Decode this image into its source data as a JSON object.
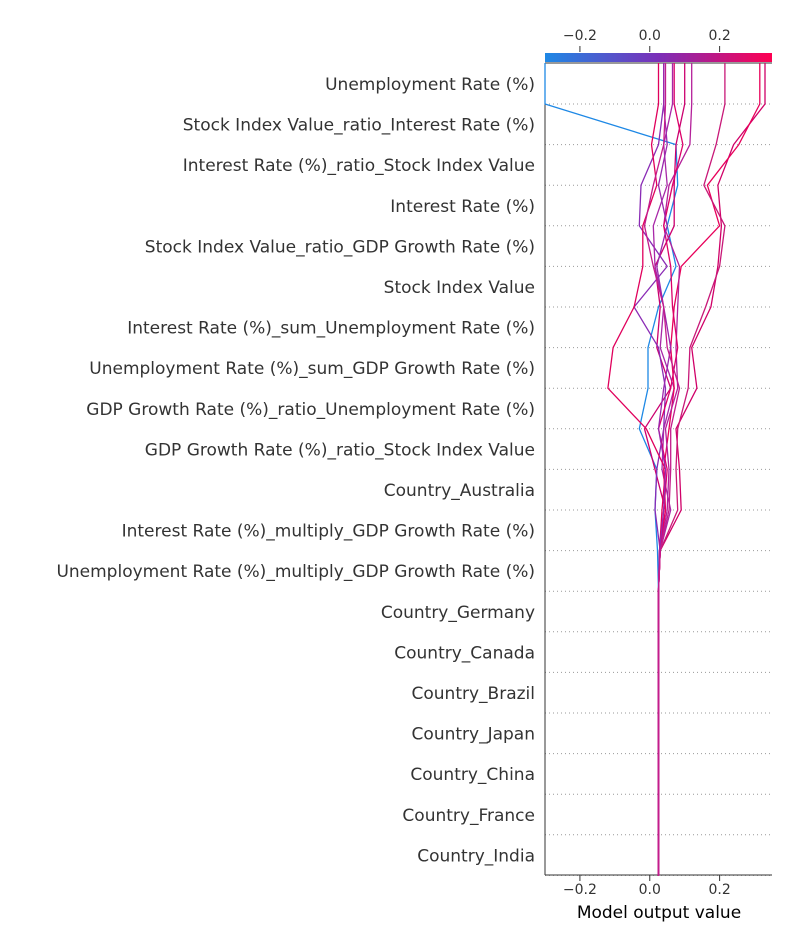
{
  "chart_data": {
    "type": "line",
    "xlabel": "Model output value",
    "xlim": [
      -0.3,
      0.35
    ],
    "xticks": [
      "−0.2",
      "0.0",
      "0.2"
    ],
    "xtick_values": [
      -0.2,
      0.0,
      0.2
    ],
    "base_value": 0.025,
    "colorbar": {
      "colors": [
        "#1e88e5",
        "#7b2fb8",
        "#ff0052"
      ],
      "range": [
        -0.3,
        0.35
      ]
    },
    "features": [
      "Unemployment Rate (%)",
      "Stock Index Value_ratio_Interest Rate (%)",
      "Interest Rate (%)_ratio_Stock Index Value",
      "Interest Rate (%)",
      "Stock Index Value_ratio_GDP Growth Rate (%)",
      "Stock Index Value",
      "Interest Rate (%)_sum_Unemployment Rate (%)",
      "Unemployment Rate (%)_sum_GDP Growth Rate (%)",
      "GDP Growth Rate (%)_ratio_Unemployment Rate (%)",
      "GDP Growth Rate (%)_ratio_Stock Index Value",
      "Country_Australia",
      "Interest Rate (%)_multiply_GDP Growth Rate (%)",
      "Unemployment Rate (%)_multiply_GDP Growth Rate (%)",
      "Country_Germany",
      "Country_Canada",
      "Country_Brazil",
      "Country_Japan",
      "Country_China",
      "Country_France",
      "Country_India"
    ],
    "series": [
      {
        "color": "#1e88e5",
        "values": [
          0.025,
          0.025,
          0.025,
          0.025,
          0.025,
          0.025,
          0.025,
          0.025,
          0.022,
          0.015,
          0.02,
          -0.03,
          -0.005,
          -0.005,
          0.025,
          0.075,
          0.05,
          0.08,
          0.075,
          -0.3
        ]
      },
      {
        "color": "#cc0070",
        "values": [
          0.025,
          0.025,
          0.025,
          0.025,
          0.025,
          0.025,
          0.025,
          0.025,
          0.028,
          0.045,
          0.015,
          -0.015,
          0.06,
          0.02,
          0.03,
          0.015,
          0.07,
          0.07,
          0.075,
          0.1
        ]
      },
      {
        "color": "#8a2bb5",
        "values": [
          0.025,
          0.025,
          0.025,
          0.025,
          0.025,
          0.025,
          0.025,
          0.025,
          0.03,
          0.015,
          0.02,
          0.04,
          0.045,
          0.025,
          -0.045,
          0.05,
          -0.03,
          -0.025,
          0.025,
          0.04
        ]
      },
      {
        "color": "#a828a8",
        "values": [
          0.025,
          0.025,
          0.025,
          0.025,
          0.025,
          0.025,
          0.025,
          0.025,
          0.03,
          0.06,
          0.035,
          0.04,
          0.07,
          0.03,
          0.04,
          0.015,
          0.01,
          0.05,
          0.04,
          0.065
        ]
      },
      {
        "color": "#e0005c",
        "values": [
          0.025,
          0.025,
          0.025,
          0.025,
          0.025,
          0.025,
          0.025,
          0.025,
          0.028,
          0.035,
          0.045,
          -0.01,
          -0.12,
          -0.105,
          -0.045,
          -0.02,
          -0.02,
          0.02,
          0.005,
          0.025
        ]
      },
      {
        "color": "#d00068",
        "values": [
          0.025,
          0.025,
          0.025,
          0.025,
          0.025,
          0.025,
          0.025,
          0.025,
          0.03,
          0.09,
          0.085,
          0.075,
          0.135,
          0.12,
          0.175,
          0.195,
          0.205,
          0.195,
          0.24,
          0.33
        ]
      },
      {
        "color": "#e8005a",
        "values": [
          0.025,
          0.025,
          0.025,
          0.025,
          0.025,
          0.025,
          0.025,
          0.025,
          0.03,
          0.045,
          0.04,
          0.055,
          0.07,
          0.06,
          0.07,
          0.09,
          0.2,
          0.165,
          0.255,
          0.315
        ]
      },
      {
        "color": "#b4209a",
        "values": [
          0.025,
          0.025,
          0.025,
          0.025,
          0.025,
          0.025,
          0.025,
          0.025,
          0.03,
          0.05,
          0.055,
          0.045,
          0.08,
          0.075,
          0.08,
          0.085,
          0.04,
          0.055,
          0.115,
          0.12
        ]
      },
      {
        "color": "#c81878",
        "values": [
          0.025,
          0.025,
          0.025,
          0.025,
          0.025,
          0.025,
          0.025,
          0.025,
          0.03,
          0.08,
          0.075,
          0.08,
          0.11,
          0.115,
          0.16,
          0.2,
          0.215,
          0.155,
          0.19,
          0.215
        ]
      },
      {
        "color": "#dc006a",
        "values": [
          0.025,
          0.025,
          0.025,
          0.025,
          0.025,
          0.025,
          0.025,
          0.025,
          0.03,
          0.04,
          0.05,
          0.025,
          0.06,
          0.08,
          0.065,
          0.06,
          0.04,
          0.065,
          0.095,
          0.07
        ]
      },
      {
        "color": "#9a28ae",
        "values": [
          0.025,
          0.025,
          0.025,
          0.025,
          0.025,
          0.025,
          0.025,
          0.025,
          0.028,
          0.04,
          0.045,
          0.025,
          0.04,
          0.06,
          0.04,
          0.02,
          0.05,
          0.025,
          0.05,
          0.04
        ]
      },
      {
        "color": "#c41c8c",
        "values": [
          0.025,
          0.025,
          0.025,
          0.025,
          0.025,
          0.025,
          0.025,
          0.025,
          0.03,
          0.055,
          0.06,
          0.06,
          0.085,
          0.05,
          0.04,
          0.01,
          -0.015,
          0.01,
          0.04,
          0.045
        ]
      }
    ]
  }
}
